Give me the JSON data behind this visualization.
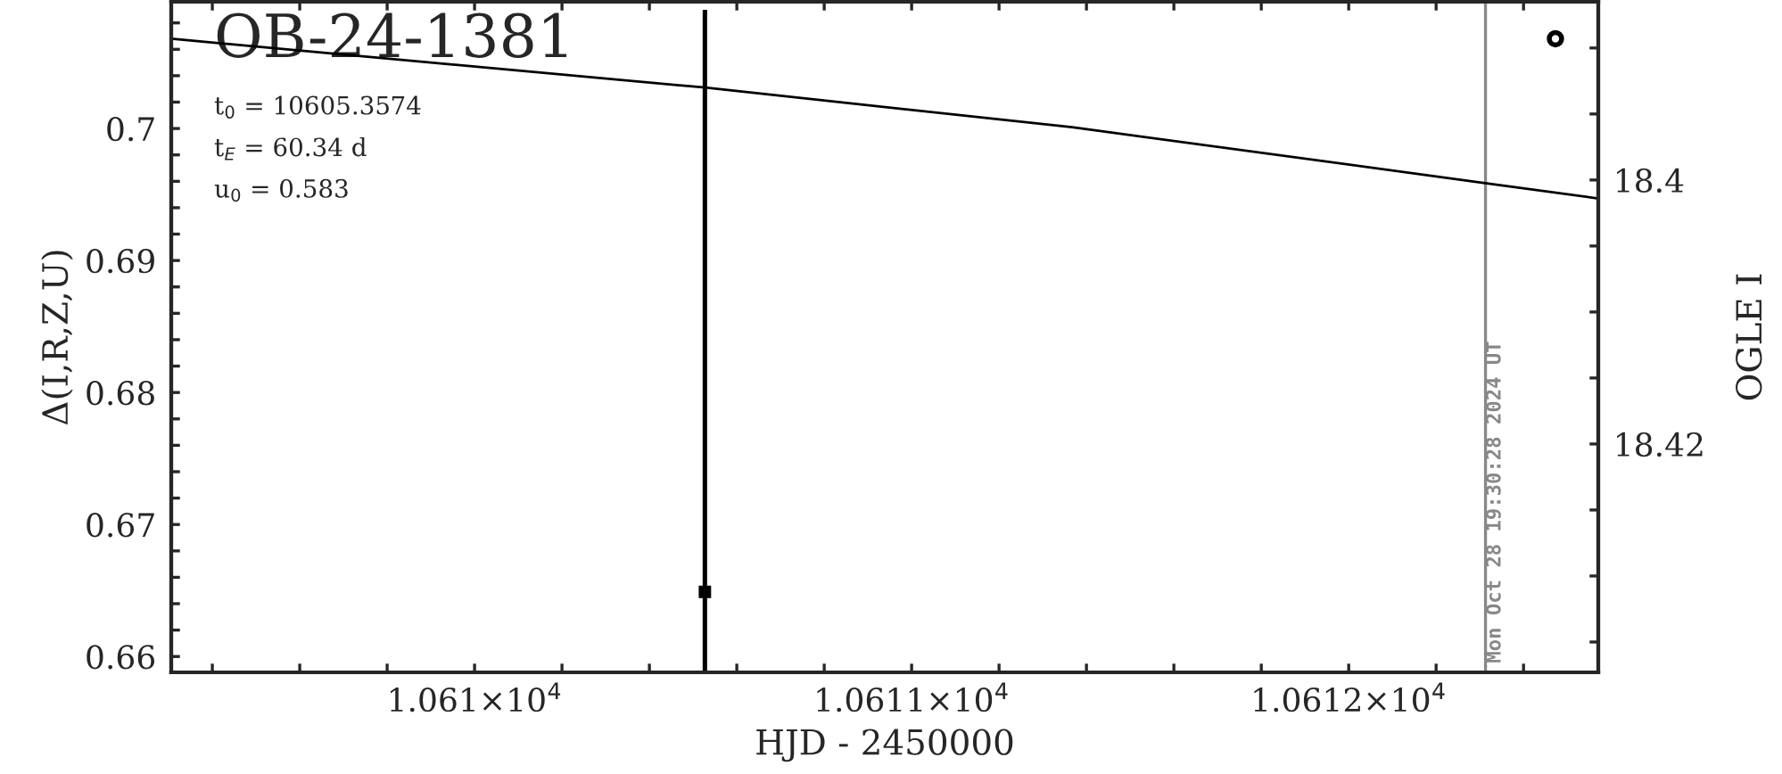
{
  "chart_data": {
    "type": "line",
    "title": "OB-24-1381",
    "xlabel": "HJD - 2450000",
    "ylabel": "Δ(I,R,Z,U)",
    "y2label": "OGLE I",
    "annotations": [
      "t$_{0}$ = 10605.3574",
      "t$_{E}$ = 60.34 d",
      "u$_{0}$ = 0.583",
      {
        "text": "Mon Oct 28 19:30:28 2024 UT",
        "x": 10612.313,
        "y": 0.6595
      }
    ],
    "series": [
      {
        "axis": "y2",
        "color": "#000000",
        "x": [
          10609.306,
          10610.527,
          10611.367,
          10612.327,
          10612.571
        ],
        "values": [
          18.3893,
          18.393,
          18.396,
          18.4003,
          18.4014
        ]
      },
      {
        "type": "scatter",
        "axis": "y2",
        "color": "#000000",
        "marker": "square",
        "x": [
          10610.527
        ],
        "values": [
          18.4312
        ],
        "errors": [
          [
            18.3871,
            18.4373
          ]
        ]
      },
      {
        "type": "scatter",
        "axis": "y2",
        "color": "#000000",
        "marker": "circle",
        "x": [
          10612.473
        ],
        "values": [
          18.3893
        ]
      }
    ],
    "xlim": [
      10609.306,
      10612.571
    ],
    "xticks": [
      {
        "value": 10609.4,
        "label": null
      },
      {
        "value": 10609.6,
        "label": null
      },
      {
        "value": 10609.8,
        "label": null
      },
      {
        "value": 10610,
        "label": "1.061×10$^{4}$"
      },
      {
        "value": 10610.2,
        "label": null
      },
      {
        "value": 10610.4,
        "label": null
      },
      {
        "value": 10610.6,
        "label": null
      },
      {
        "value": 10610.8,
        "label": null
      },
      {
        "value": 10611,
        "label": "1.0611×10$^{4}$"
      },
      {
        "value": 10611.2,
        "label": null
      },
      {
        "value": 10611.4,
        "label": null
      },
      {
        "value": 10611.6,
        "label": null
      },
      {
        "value": 10611.8,
        "label": null
      },
      {
        "value": 10612,
        "label": "1.0612×10$^{4}$"
      },
      {
        "value": 10612.2,
        "label": null
      },
      {
        "value": 10612.4,
        "label": null
      }
    ],
    "ylim": [
      0.6588,
      0.7096
    ],
    "yticks": [
      0.66,
      {
        "value": 0.662,
        "label": null
      },
      {
        "value": 0.664,
        "label": null
      },
      {
        "value": 0.666,
        "label": null
      },
      {
        "value": 0.668,
        "label": null
      },
      0.67,
      {
        "value": 0.672,
        "label": null
      },
      {
        "value": 0.674,
        "label": null
      },
      {
        "value": 0.676,
        "label": null
      },
      {
        "value": 0.678,
        "label": null
      },
      0.68,
      {
        "value": 0.682,
        "label": null
      },
      {
        "value": 0.684,
        "label": null
      },
      {
        "value": 0.686,
        "label": null
      },
      {
        "value": 0.688,
        "label": null
      },
      0.69,
      {
        "value": 0.692,
        "label": null
      },
      {
        "value": 0.694,
        "label": null
      },
      {
        "value": 0.696,
        "label": null
      },
      {
        "value": 0.698,
        "label": null
      },
      0.7,
      {
        "value": 0.702,
        "label": null
      },
      {
        "value": 0.704,
        "label": null
      },
      {
        "value": 0.706,
        "label": null
      },
      {
        "value": 0.708,
        "label": null
      }
    ],
    "y2lim": [
      18.4373,
      18.3865
    ],
    "y2ticks": [
      {
        "value": 18.39,
        "label": null
      },
      {
        "value": 18.395,
        "label": null
      },
      18.4,
      {
        "value": 18.405,
        "label": null
      },
      {
        "value": 18.41,
        "label": null
      },
      {
        "value": 18.415,
        "label": null
      },
      18.42,
      {
        "value": 18.425,
        "label": null
      },
      {
        "value": 18.43,
        "label": null
      },
      {
        "value": 18.435,
        "label": null
      }
    ],
    "ref_lines": [
      {
        "axis": "x",
        "value": 10612.313,
        "color": "#888888",
        "line_style": "solid"
      }
    ],
    "grid": false,
    "legend": false
  }
}
